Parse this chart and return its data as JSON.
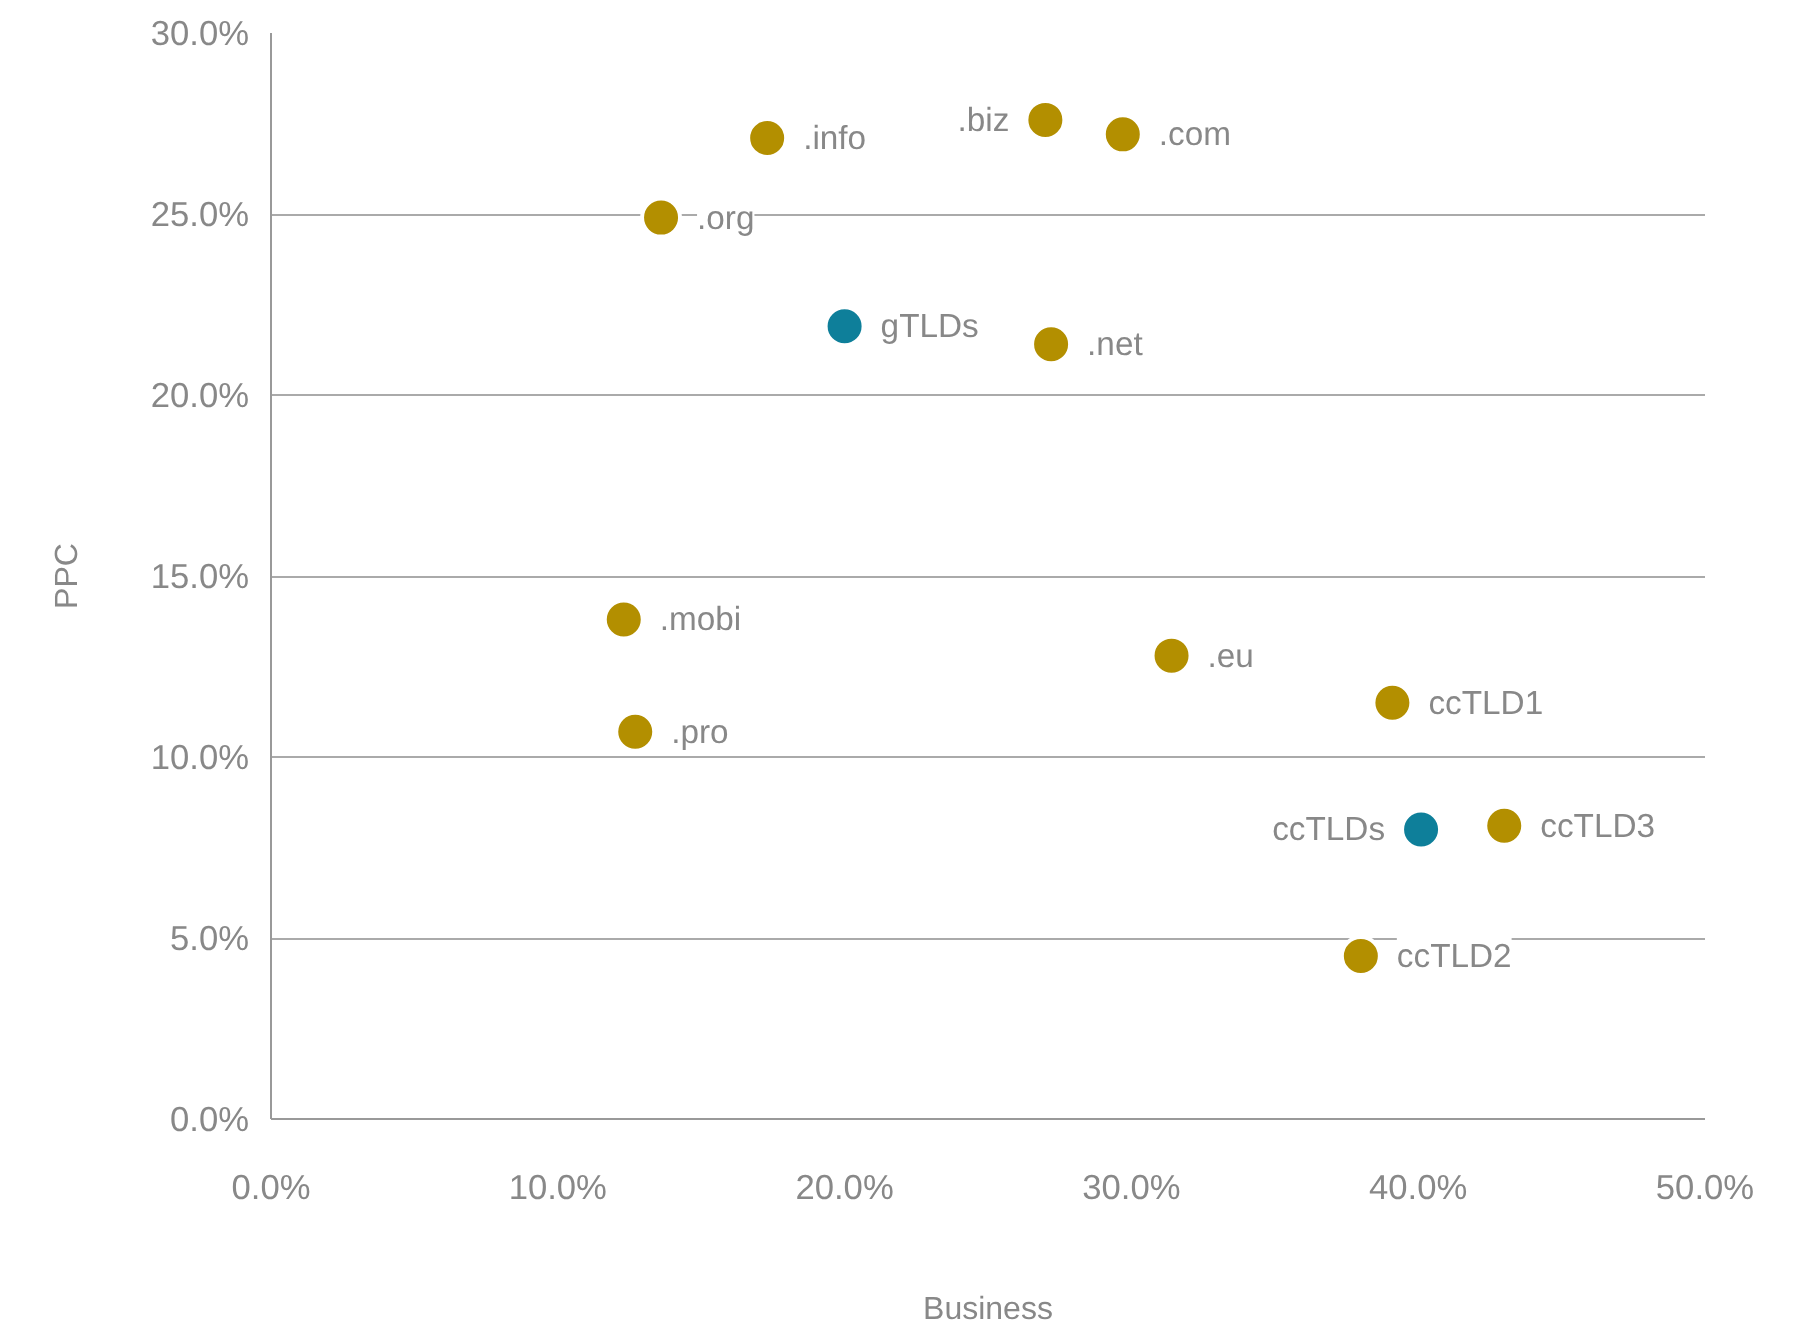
{
  "chart_data": {
    "type": "scatter",
    "xlabel": "Business",
    "ylabel": "PPC",
    "xlim": [
      0,
      50
    ],
    "ylim": [
      0,
      30
    ],
    "xticks": [
      {
        "value": 0,
        "label": "0.0%"
      },
      {
        "value": 10,
        "label": "10.0%"
      },
      {
        "value": 20,
        "label": "20.0%"
      },
      {
        "value": 30,
        "label": "30.0%"
      },
      {
        "value": 40,
        "label": "40.0%"
      },
      {
        "value": 50,
        "label": "50.0%"
      }
    ],
    "yticks": [
      {
        "value": 0,
        "label": "0.0%"
      },
      {
        "value": 5,
        "label": "5.0%"
      },
      {
        "value": 10,
        "label": "10.0%"
      },
      {
        "value": 15,
        "label": "15.0%"
      },
      {
        "value": 20,
        "label": "20.0%"
      },
      {
        "value": 25,
        "label": "25.0%"
      },
      {
        "value": 30,
        "label": "30.0%"
      }
    ],
    "grid": "y",
    "marker": "circle",
    "series": [
      {
        "color": "#b38f00",
        "x": [
          17.3,
          27.0,
          29.7,
          13.6,
          27.2,
          12.3,
          12.7,
          31.4,
          39.1,
          43.0,
          38.0
        ],
        "values": [
          27.1,
          27.6,
          27.2,
          24.9,
          21.4,
          13.8,
          10.7,
          12.8,
          11.5,
          8.1,
          4.5
        ]
      },
      {
        "color": "#0e7f9a",
        "x": [
          20.0,
          40.1
        ],
        "values": [
          21.9,
          8.0
        ]
      }
    ],
    "annotations": [
      {
        "text": ".info",
        "x": 17.3,
        "y": 27.1
      },
      {
        "text": ".biz",
        "x": 27.0,
        "y": 27.6
      },
      {
        "text": ".com",
        "x": 29.7,
        "y": 27.2
      },
      {
        "text": ".org",
        "x": 13.6,
        "y": 24.9
      },
      {
        "text": ".net",
        "x": 27.2,
        "y": 21.4
      },
      {
        "text": ".mobi",
        "x": 12.3,
        "y": 13.8
      },
      {
        "text": ".pro",
        "x": 12.7,
        "y": 10.7
      },
      {
        "text": ".eu",
        "x": 31.4,
        "y": 12.8
      },
      {
        "text": "ccTLD1",
        "x": 39.1,
        "y": 11.5
      },
      {
        "text": "ccTLD3",
        "x": 43.0,
        "y": 8.1
      },
      {
        "text": "ccTLD2",
        "x": 38.0,
        "y": 4.5
      },
      {
        "text": "gTLDs",
        "x": 20.0,
        "y": 21.9
      },
      {
        "text": "ccTLDs",
        "x": 40.1,
        "y": 8.0
      }
    ]
  }
}
